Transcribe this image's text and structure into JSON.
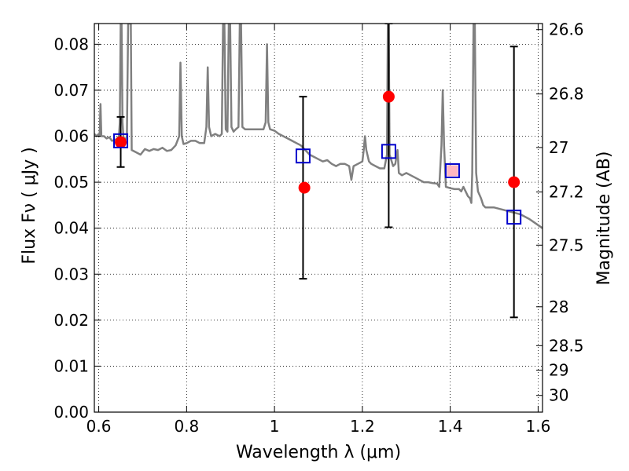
{
  "chart_data": {
    "type": "line",
    "xlabel": "Wavelength  λ (μm)",
    "ylabel_left": "Flux  Fν  ( μJy )",
    "ylabel_right": "Magnitude (AB)",
    "xlim": [
      0.59,
      1.61
    ],
    "ylim": [
      0.0,
      0.0845
    ],
    "grid": true,
    "x_ticks": [
      {
        "value": 0.6,
        "label": "0.6"
      },
      {
        "value": 0.8,
        "label": "0.8"
      },
      {
        "value": 1.0,
        "label": "1"
      },
      {
        "value": 1.2,
        "label": "1.2"
      },
      {
        "value": 1.4,
        "label": "1.4"
      },
      {
        "value": 1.6,
        "label": "1.6"
      }
    ],
    "y_ticks": [
      {
        "value": 0.0,
        "label": "0.00"
      },
      {
        "value": 0.01,
        "label": "0.01"
      },
      {
        "value": 0.02,
        "label": "0.02"
      },
      {
        "value": 0.03,
        "label": "0.03"
      },
      {
        "value": 0.04,
        "label": "0.04"
      },
      {
        "value": 0.05,
        "label": "0.05"
      },
      {
        "value": 0.06,
        "label": "0.06"
      },
      {
        "value": 0.07,
        "label": "0.07"
      },
      {
        "value": 0.08,
        "label": "0.08"
      }
    ],
    "right_ticks": [
      {
        "mag": 26.6,
        "label": "26.6"
      },
      {
        "mag": 26.8,
        "label": "26.8"
      },
      {
        "mag": 27.0,
        "label": "27"
      },
      {
        "mag": 27.2,
        "label": "27.2"
      },
      {
        "mag": 27.5,
        "label": "27.5"
      },
      {
        "mag": 28.0,
        "label": "28"
      },
      {
        "mag": 28.5,
        "label": "28.5"
      },
      {
        "mag": 29.0,
        "label": "29"
      },
      {
        "mag": 30.0,
        "label": "30"
      }
    ],
    "series": [
      {
        "type": "line",
        "color": "#808080",
        "points": [
          [
            0.59,
            0.0605
          ],
          [
            0.595,
            0.06
          ],
          [
            0.6,
            0.0605
          ],
          [
            0.602,
            0.06
          ],
          [
            0.604,
            0.067
          ],
          [
            0.606,
            0.06
          ],
          [
            0.612,
            0.06
          ],
          [
            0.618,
            0.0595
          ],
          [
            0.624,
            0.0598
          ],
          [
            0.63,
            0.059
          ],
          [
            0.64,
            0.0593
          ],
          [
            0.646,
            0.06
          ],
          [
            0.648,
            0.063
          ],
          [
            0.65,
            0.0845
          ],
          [
            0.652,
            0.0845
          ],
          [
            0.654,
            0.063
          ],
          [
            0.656,
            0.06
          ],
          [
            0.66,
            0.059
          ],
          [
            0.664,
            0.06
          ],
          [
            0.667,
            0.0845
          ],
          [
            0.669,
            0.0845
          ],
          [
            0.671,
            0.0845
          ],
          [
            0.673,
            0.0845
          ],
          [
            0.675,
            0.057
          ],
          [
            0.685,
            0.0565
          ],
          [
            0.695,
            0.056
          ],
          [
            0.705,
            0.0572
          ],
          [
            0.715,
            0.0568
          ],
          [
            0.725,
            0.0572
          ],
          [
            0.735,
            0.057
          ],
          [
            0.745,
            0.0575
          ],
          [
            0.755,
            0.0568
          ],
          [
            0.765,
            0.057
          ],
          [
            0.775,
            0.058
          ],
          [
            0.783,
            0.06
          ],
          [
            0.786,
            0.076
          ],
          [
            0.789,
            0.06
          ],
          [
            0.793,
            0.0583
          ],
          [
            0.8,
            0.0585
          ],
          [
            0.81,
            0.059
          ],
          [
            0.82,
            0.059
          ],
          [
            0.83,
            0.0585
          ],
          [
            0.84,
            0.0585
          ],
          [
            0.845,
            0.062
          ],
          [
            0.848,
            0.075
          ],
          [
            0.851,
            0.062
          ],
          [
            0.856,
            0.06
          ],
          [
            0.865,
            0.0605
          ],
          [
            0.875,
            0.06
          ],
          [
            0.88,
            0.0605
          ],
          [
            0.883,
            0.0845
          ],
          [
            0.886,
            0.0845
          ],
          [
            0.889,
            0.0615
          ],
          [
            0.893,
            0.061
          ],
          [
            0.896,
            0.0845
          ],
          [
            0.899,
            0.0845
          ],
          [
            0.902,
            0.062
          ],
          [
            0.907,
            0.061
          ],
          [
            0.912,
            0.0615
          ],
          [
            0.918,
            0.062
          ],
          [
            0.921,
            0.0845
          ],
          [
            0.924,
            0.0845
          ],
          [
            0.927,
            0.062
          ],
          [
            0.933,
            0.0615
          ],
          [
            0.945,
            0.0615
          ],
          [
            0.955,
            0.0615
          ],
          [
            0.965,
            0.0615
          ],
          [
            0.975,
            0.0615
          ],
          [
            0.98,
            0.063
          ],
          [
            0.983,
            0.08
          ],
          [
            0.986,
            0.063
          ],
          [
            0.99,
            0.0615
          ],
          [
            1.0,
            0.0612
          ],
          [
            1.01,
            0.0605
          ],
          [
            1.02,
            0.06
          ],
          [
            1.03,
            0.0595
          ],
          [
            1.04,
            0.059
          ],
          [
            1.05,
            0.0585
          ],
          [
            1.06,
            0.058
          ],
          [
            1.07,
            0.057
          ],
          [
            1.08,
            0.056
          ],
          [
            1.09,
            0.0555
          ],
          [
            1.1,
            0.055
          ],
          [
            1.11,
            0.0545
          ],
          [
            1.12,
            0.0548
          ],
          [
            1.13,
            0.054
          ],
          [
            1.14,
            0.0535
          ],
          [
            1.15,
            0.054
          ],
          [
            1.16,
            0.054
          ],
          [
            1.17,
            0.0535
          ],
          [
            1.175,
            0.0505
          ],
          [
            1.18,
            0.0535
          ],
          [
            1.19,
            0.054
          ],
          [
            1.2,
            0.0545
          ],
          [
            1.203,
            0.057
          ],
          [
            1.206,
            0.06
          ],
          [
            1.209,
            0.057
          ],
          [
            1.215,
            0.0545
          ],
          [
            1.22,
            0.054
          ],
          [
            1.23,
            0.0535
          ],
          [
            1.24,
            0.053
          ],
          [
            1.25,
            0.053
          ],
          [
            1.256,
            0.056
          ],
          [
            1.258,
            0.0845
          ],
          [
            1.26,
            0.0845
          ],
          [
            1.262,
            0.056
          ],
          [
            1.27,
            0.0535
          ],
          [
            1.275,
            0.054
          ],
          [
            1.28,
            0.057
          ],
          [
            1.283,
            0.052
          ],
          [
            1.29,
            0.0515
          ],
          [
            1.3,
            0.052
          ],
          [
            1.31,
            0.0515
          ],
          [
            1.32,
            0.051
          ],
          [
            1.33,
            0.0505
          ],
          [
            1.34,
            0.05
          ],
          [
            1.35,
            0.05
          ],
          [
            1.36,
            0.0498
          ],
          [
            1.37,
            0.0497
          ],
          [
            1.375,
            0.049
          ],
          [
            1.38,
            0.058
          ],
          [
            1.383,
            0.07
          ],
          [
            1.386,
            0.058
          ],
          [
            1.39,
            0.049
          ],
          [
            1.4,
            0.0487
          ],
          [
            1.41,
            0.0485
          ],
          [
            1.42,
            0.0485
          ],
          [
            1.425,
            0.048
          ],
          [
            1.43,
            0.049
          ],
          [
            1.435,
            0.048
          ],
          [
            1.44,
            0.047
          ],
          [
            1.445,
            0.0465
          ],
          [
            1.448,
            0.0455
          ],
          [
            1.45,
            0.052
          ],
          [
            1.453,
            0.0845
          ],
          [
            1.456,
            0.0845
          ],
          [
            1.459,
            0.052
          ],
          [
            1.463,
            0.048
          ],
          [
            1.47,
            0.0465
          ],
          [
            1.475,
            0.045
          ],
          [
            1.48,
            0.0445
          ],
          [
            1.5,
            0.0445
          ],
          [
            1.52,
            0.044
          ],
          [
            1.54,
            0.0435
          ],
          [
            1.56,
            0.043
          ],
          [
            1.58,
            0.042
          ],
          [
            1.595,
            0.041
          ],
          [
            1.61,
            0.04
          ]
        ]
      },
      {
        "type": "errorbar",
        "color": "#000000",
        "points": [
          {
            "x": 0.65,
            "low": 0.0533,
            "high": 0.0642
          },
          {
            "x": 1.065,
            "low": 0.029,
            "high": 0.0686
          },
          {
            "x": 1.26,
            "low": 0.0402,
            "high": 0.0845
          },
          {
            "x": 1.545,
            "low": 0.0206,
            "high": 0.0795
          }
        ]
      },
      {
        "type": "scatter",
        "marker": "circle",
        "color": "#ff0000",
        "points": [
          [
            0.65,
            0.0587
          ],
          [
            1.068,
            0.0488
          ],
          [
            1.26,
            0.0686
          ],
          [
            1.545,
            0.05
          ]
        ]
      },
      {
        "type": "scatter",
        "marker": "open-square",
        "color": "#0000cc",
        "points": [
          [
            0.65,
            0.059
          ],
          [
            1.065,
            0.0557
          ],
          [
            1.26,
            0.0567
          ],
          [
            1.405,
            0.0525
          ],
          [
            1.545,
            0.0424
          ]
        ]
      }
    ],
    "extra_marker": {
      "marker": "filled-square",
      "color": "#ffb6c1",
      "point": [
        1.405,
        0.0525
      ]
    }
  }
}
